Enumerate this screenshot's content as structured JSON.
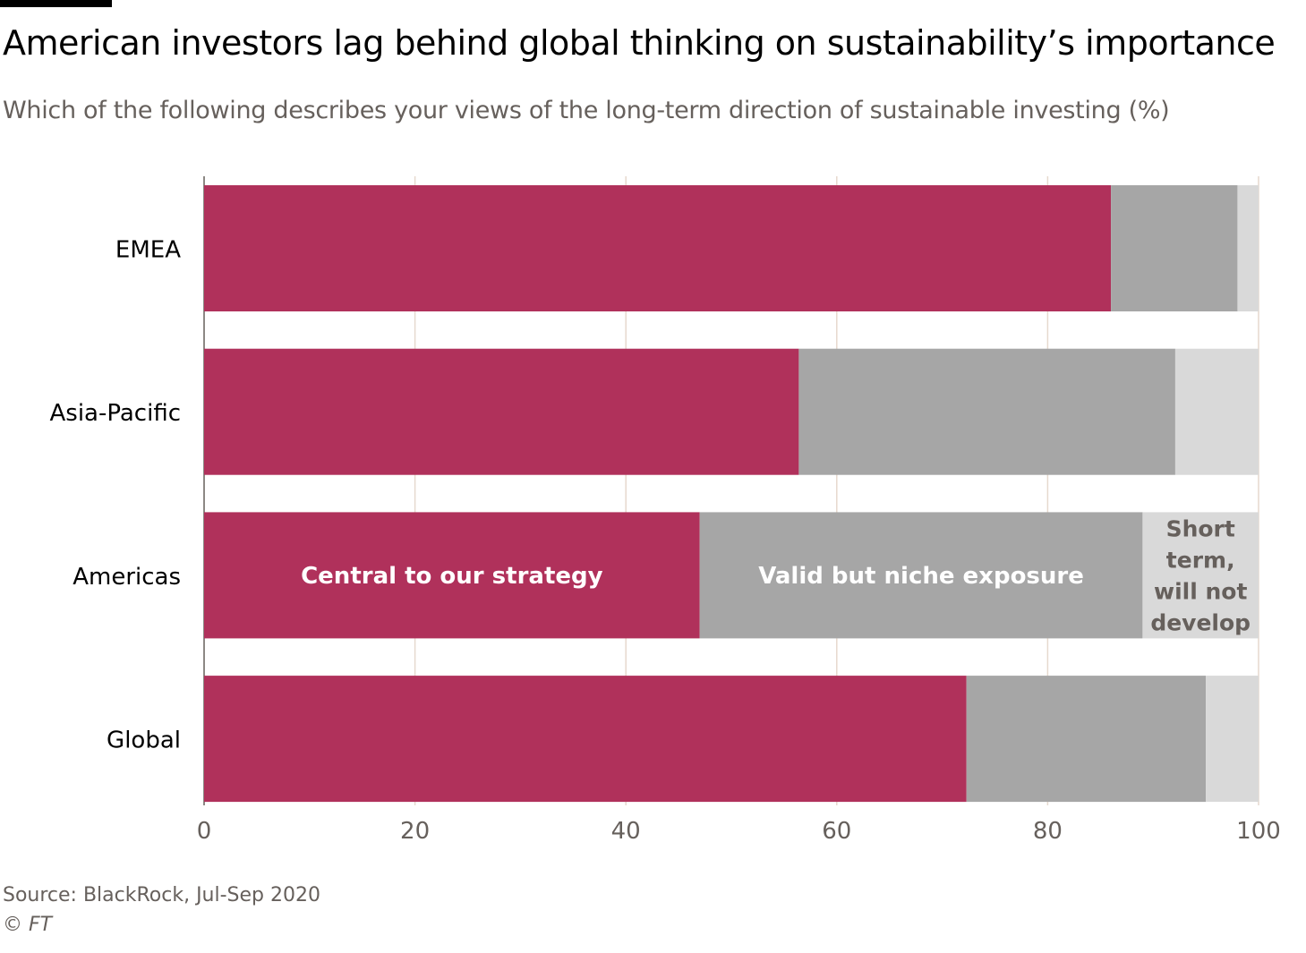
{
  "header": {
    "title": "American investors lag behind global thinking on sustainability’s importance",
    "subtitle": "Which of the following describes your views of the long-term direction of sustainable investing (%)"
  },
  "footer": {
    "source": "Source: BlackRock, Jul-Sep 2020",
    "credit": "© FT"
  },
  "chart_data": {
    "type": "bar",
    "orientation": "horizontal",
    "stacked": true,
    "title": "American investors lag behind global thinking on sustainability’s importance",
    "subtitle": "Which of the following describes your views of the long-term direction of sustainable investing (%)",
    "categories": [
      "EMEA",
      "Asia-Pacific",
      "Americas",
      "Global"
    ],
    "series": [
      {
        "name": "Central to our strategy",
        "color": "#b0315b",
        "label_color": "#ffffff",
        "label_lines": [
          "Central to our strategy"
        ],
        "values": [
          86,
          56.4,
          47,
          72.3
        ]
      },
      {
        "name": "Valid but niche exposure",
        "color": "#a6a6a6",
        "label_color": "#ffffff",
        "label_lines": [
          "Valid but niche exposure"
        ],
        "values": [
          12,
          35.7,
          42,
          22.7
        ]
      },
      {
        "name": "Short term, will not develop",
        "color": "#d9d9d9",
        "label_color": "#66605c",
        "label_lines": [
          "Short",
          "term,",
          "will not",
          "develop"
        ],
        "values": [
          2,
          7.9,
          11,
          5
        ]
      }
    ],
    "label_category": "Americas",
    "xlim": [
      0,
      100
    ],
    "xticks": [
      0,
      20,
      40,
      60,
      80,
      100
    ],
    "grid": true,
    "xlabel": "",
    "ylabel": ""
  }
}
